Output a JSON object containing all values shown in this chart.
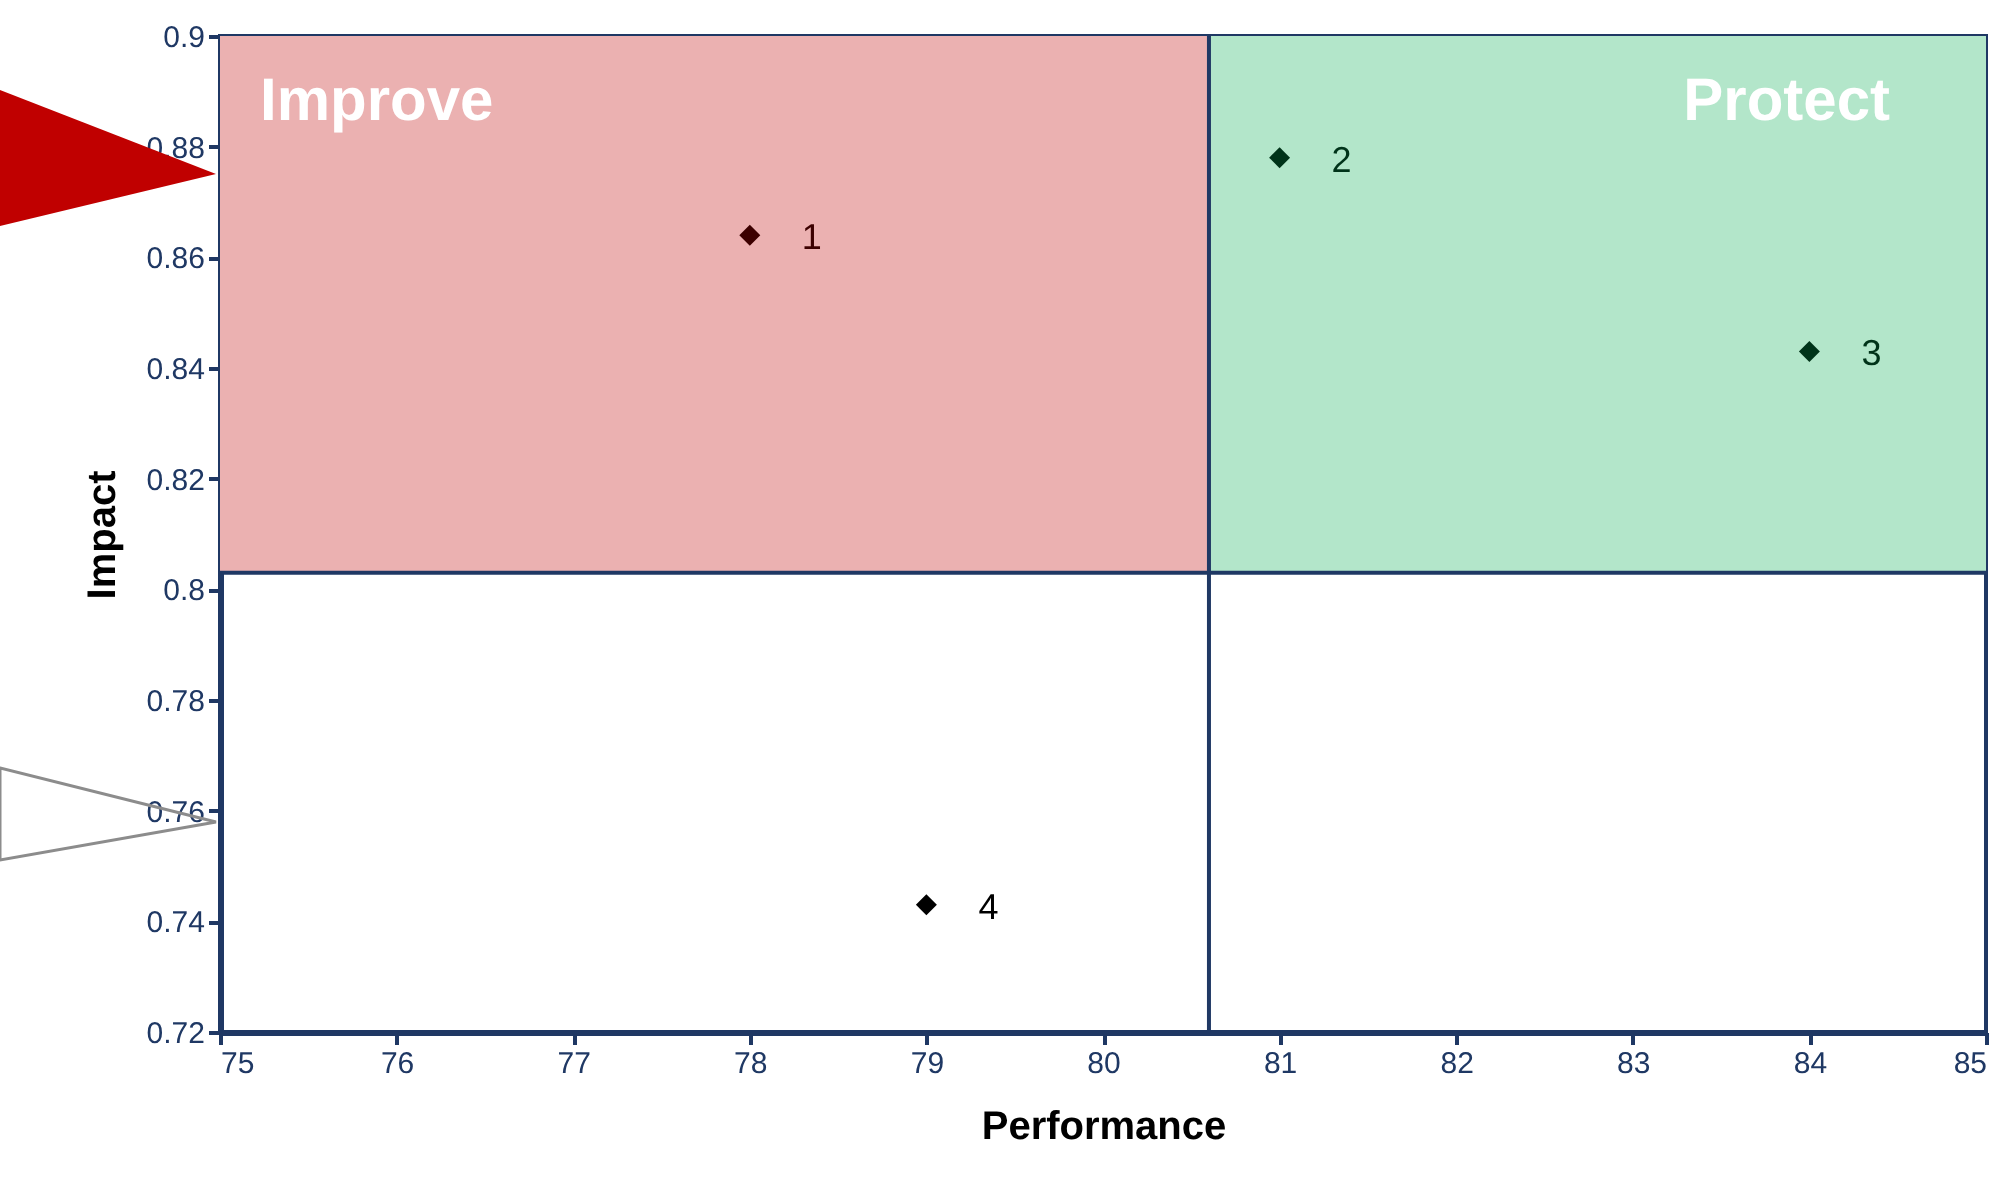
{
  "chart_data": {
    "type": "scatter",
    "xlabel": "Performance",
    "ylabel": "Impact",
    "xlim": [
      75,
      85
    ],
    "xticks": [
      75,
      76,
      77,
      78,
      79,
      80,
      81,
      82,
      83,
      84,
      85
    ],
    "ylim": [
      0.72,
      0.9
    ],
    "yticks": [
      0.72,
      0.74,
      0.76,
      0.78,
      0.8,
      0.82,
      0.84,
      0.86,
      0.88,
      0.9
    ],
    "marker": "diamond",
    "series": [
      {
        "x": [
          78,
          81,
          84,
          79
        ],
        "values": [
          0.864,
          0.878,
          0.843,
          0.743
        ],
        "colors": [
          "#3c0000",
          "#003319",
          "#003319",
          "#000000"
        ]
      }
    ],
    "annotations": [
      {
        "text": "1",
        "x": 78,
        "y": 0.864
      },
      {
        "text": "2",
        "x": 81,
        "y": 0.878
      },
      {
        "text": "3",
        "x": 84,
        "y": 0.843
      },
      {
        "text": "4",
        "x": 79,
        "y": 0.743
      }
    ],
    "ref_lines": [
      {
        "axis": "x",
        "value": 80.6,
        "color": "#1f3864"
      },
      {
        "axis": "y",
        "value": 0.803,
        "color": "#1f3864"
      }
    ],
    "bands": [
      {
        "axis": "x",
        "from": 75,
        "to": 80.6,
        "label": "Improve",
        "color": "#ebb1b1"
      },
      {
        "axis": "x",
        "from": 80.6,
        "to": 85,
        "label": "Protect",
        "color": "#b3e6ca"
      }
    ]
  }
}
